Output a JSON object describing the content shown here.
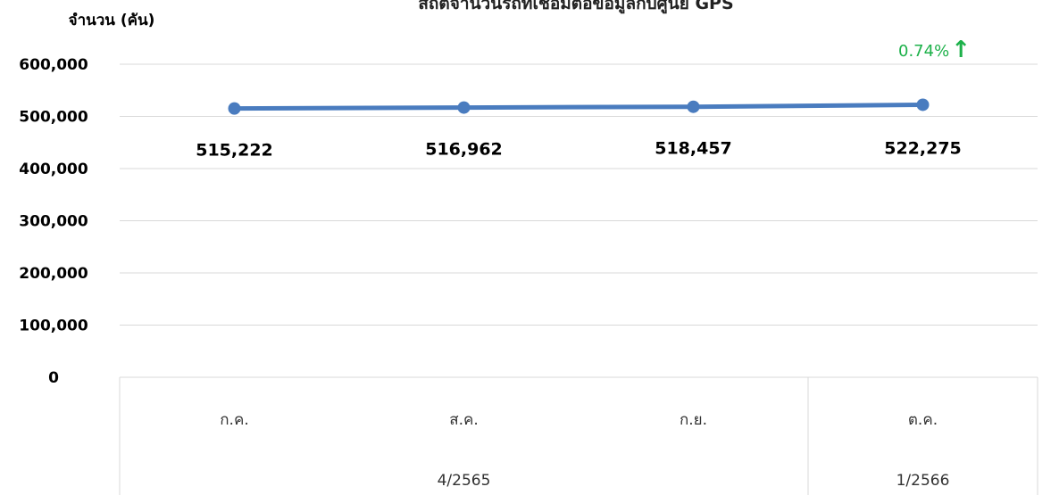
{
  "chart_data": {
    "type": "line",
    "title": "สถิติจำนวนรถที่เชื่อมต่อข้อมูลกับศูนย์ GPS",
    "ylabel": "จำนวน (คัน)",
    "ylim": [
      0,
      600000
    ],
    "yticks": [
      "0",
      "100,000",
      "200,000",
      "300,000",
      "400,000",
      "500,000",
      "600,000"
    ],
    "categories": [
      "ก.ค.",
      "ส.ค.",
      "ก.ย.",
      "ต.ค."
    ],
    "groups": [
      {
        "label": "4/2565",
        "count": 3
      },
      {
        "label": "1/2566",
        "count": 1
      }
    ],
    "series": [
      {
        "values": [
          515222,
          516962,
          518457,
          522275
        ],
        "labels": [
          "515,222",
          "516,962",
          "518,457",
          "522,275"
        ]
      }
    ],
    "annotation": {
      "text": "0.74%",
      "arrow": "↑"
    },
    "grid": true,
    "line_color": "#4a7cbf",
    "grid_color": "#d9d9d9",
    "annotation_color": "#1db14a"
  }
}
